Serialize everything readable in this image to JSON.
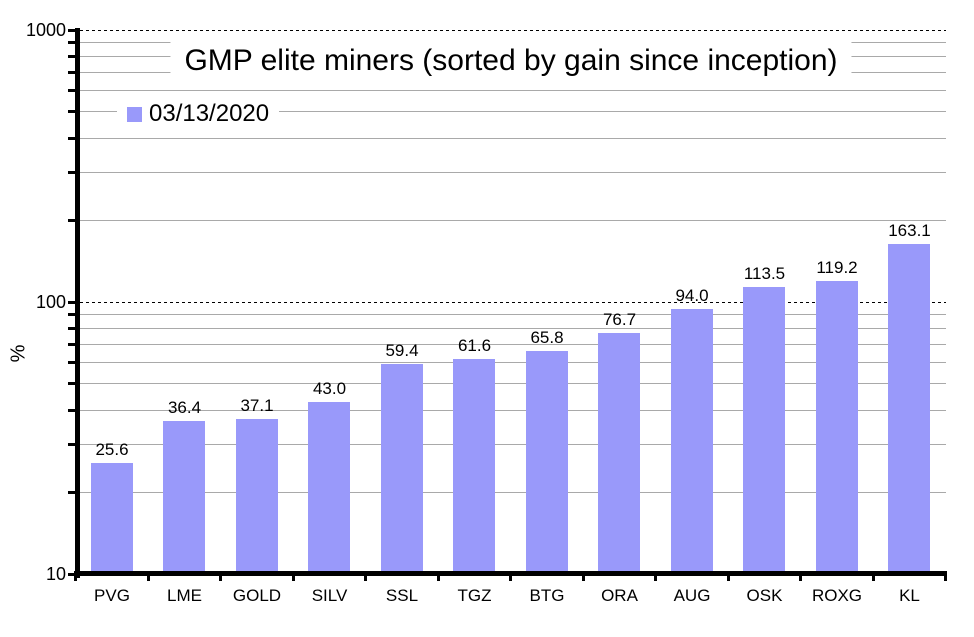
{
  "chart_data": {
    "type": "bar",
    "title": "GMP elite miners (sorted by gain since inception)",
    "legend": [
      {
        "name": "03/13/2020",
        "color": "#9999fa"
      }
    ],
    "legend_position": "top-left",
    "categories": [
      "PVG",
      "LME",
      "GOLD",
      "SILV",
      "SSL",
      "TGZ",
      "BTG",
      "ORA",
      "AUG",
      "OSK",
      "ROXG",
      "KL"
    ],
    "values": [
      25.6,
      36.4,
      37.1,
      43.0,
      59.4,
      61.6,
      65.8,
      76.7,
      94.0,
      113.5,
      119.2,
      163.1
    ],
    "value_labels": [
      "25.6",
      "36.4",
      "37.1",
      "43.0",
      "59.4",
      "61.6",
      "65.8",
      "76.7",
      "94.0",
      "113.5",
      "119.2",
      "163.1"
    ],
    "xlabel": "",
    "ylabel": "%",
    "yscale": "log",
    "ylim": [
      10,
      1000
    ],
    "yticks": [
      10,
      100,
      1000
    ],
    "ytick_labels": [
      "10",
      "100",
      "1000"
    ],
    "grid": {
      "major_style": "dashed-black",
      "minor_style": "solid-gray",
      "minor_values": [
        20,
        30,
        40,
        50,
        60,
        70,
        80,
        90,
        200,
        300,
        400,
        500,
        600,
        700,
        800,
        900
      ]
    },
    "colors": {
      "bar": "#9999fa",
      "minor_grid": "#a9a9a9",
      "axis": "#000000",
      "background": "#ffffff"
    }
  }
}
